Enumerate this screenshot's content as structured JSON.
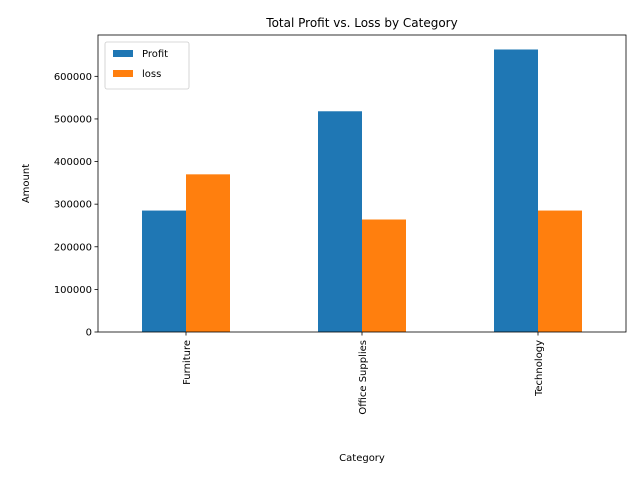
{
  "chart_data": {
    "type": "bar",
    "title": "Total Profit vs. Loss by Category",
    "xlabel": "Category",
    "ylabel": "Amount",
    "categories": [
      "Furniture",
      "Office Supplies",
      "Technology"
    ],
    "series": [
      {
        "name": "Profit",
        "color": "#1f77b4",
        "values": [
          285000,
          518000,
          663000
        ]
      },
      {
        "name": "loss",
        "color": "#ff7f0e",
        "values": [
          370000,
          264000,
          285000
        ]
      }
    ],
    "ylim": [
      0,
      697000
    ],
    "yticks": [
      0,
      100000,
      200000,
      300000,
      400000,
      500000,
      600000
    ],
    "ytick_labels": [
      "0",
      "100000",
      "200000",
      "300000",
      "400000",
      "500000",
      "600000"
    ],
    "grid": false,
    "legend_position": "top-left"
  }
}
